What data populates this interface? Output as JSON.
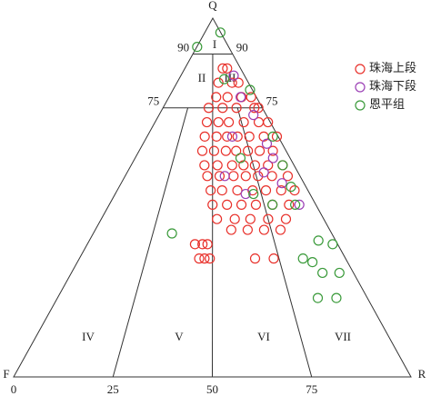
{
  "chart_data": {
    "type": "ternary",
    "apex_labels": {
      "top": "Q",
      "left": "F",
      "right": "R"
    },
    "xlim": [
      0,
      100
    ],
    "xticks": [
      0,
      25,
      50,
      75
    ],
    "ylim": [
      0,
      100
    ],
    "yticks": [
      75,
      90
    ],
    "annotations": [
      "I",
      "II",
      "III",
      "IV",
      "V",
      "VI",
      "VII"
    ],
    "legend": "upper right",
    "series": [
      {
        "name": "珠海上段",
        "color": "#e8302a",
        "x": [
          68,
          76,
          58,
          77,
          86,
          54,
          67,
          83,
          94,
          46,
          60,
          74,
          92,
          96,
          45,
          55,
          64,
          77,
          90,
          98,
          44,
          53,
          61,
          69,
          78,
          89,
          99,
          43,
          51,
          59,
          66,
          74,
          82,
          91,
          45,
          53,
          62,
          69,
          76,
          84,
          93,
          47,
          54,
          62,
          69,
          76,
          84,
          93,
          49,
          55,
          63,
          71,
          78,
          86,
          93,
          50,
          57,
          64,
          71,
          79,
          87,
          52,
          60,
          67,
          75,
          83,
          58,
          65,
          72,
          79,
          43,
          46,
          48,
          45,
          47,
          49,
          66,
          73
        ],
        "values": [
          86,
          86,
          82,
          82,
          82,
          78,
          78,
          78,
          78,
          75,
          75,
          75,
          75,
          75,
          71,
          71,
          71,
          71,
          71,
          71,
          67,
          67,
          67,
          67,
          67,
          67,
          67,
          63,
          63,
          63,
          63,
          63,
          63,
          63,
          59,
          59,
          59,
          59,
          59,
          59,
          59,
          56,
          56,
          56,
          56,
          56,
          56,
          56,
          52,
          52,
          52,
          52,
          52,
          52,
          52,
          48,
          48,
          48,
          48,
          48,
          48,
          44,
          44,
          44,
          44,
          44,
          41,
          41,
          41,
          41,
          37,
          37,
          37,
          33,
          33,
          33,
          33,
          33
        ]
      },
      {
        "name": "珠海下段",
        "color": "#9b3fb5",
        "x": [
          83,
          82,
          88,
          65,
          89,
          89,
          80,
          57,
          88,
          67,
          92
        ],
        "values": [
          84,
          78,
          73,
          67,
          65,
          61,
          57,
          56,
          54,
          51,
          48
        ]
      },
      {
        "name": "恩平组",
        "color": "#3a9a3a",
        "x": [
          1,
          98,
          67,
          97,
          68,
          96,
          93,
          71,
          92,
          79,
          90,
          33,
          93,
          98,
          87,
          84,
          89,
          95,
          84,
          90
        ],
        "values": [
          92,
          96,
          83,
          80,
          61,
          67,
          59,
          51,
          53,
          48,
          48,
          40,
          38,
          37,
          32,
          33,
          29,
          29,
          22,
          22
        ]
      }
    ]
  }
}
